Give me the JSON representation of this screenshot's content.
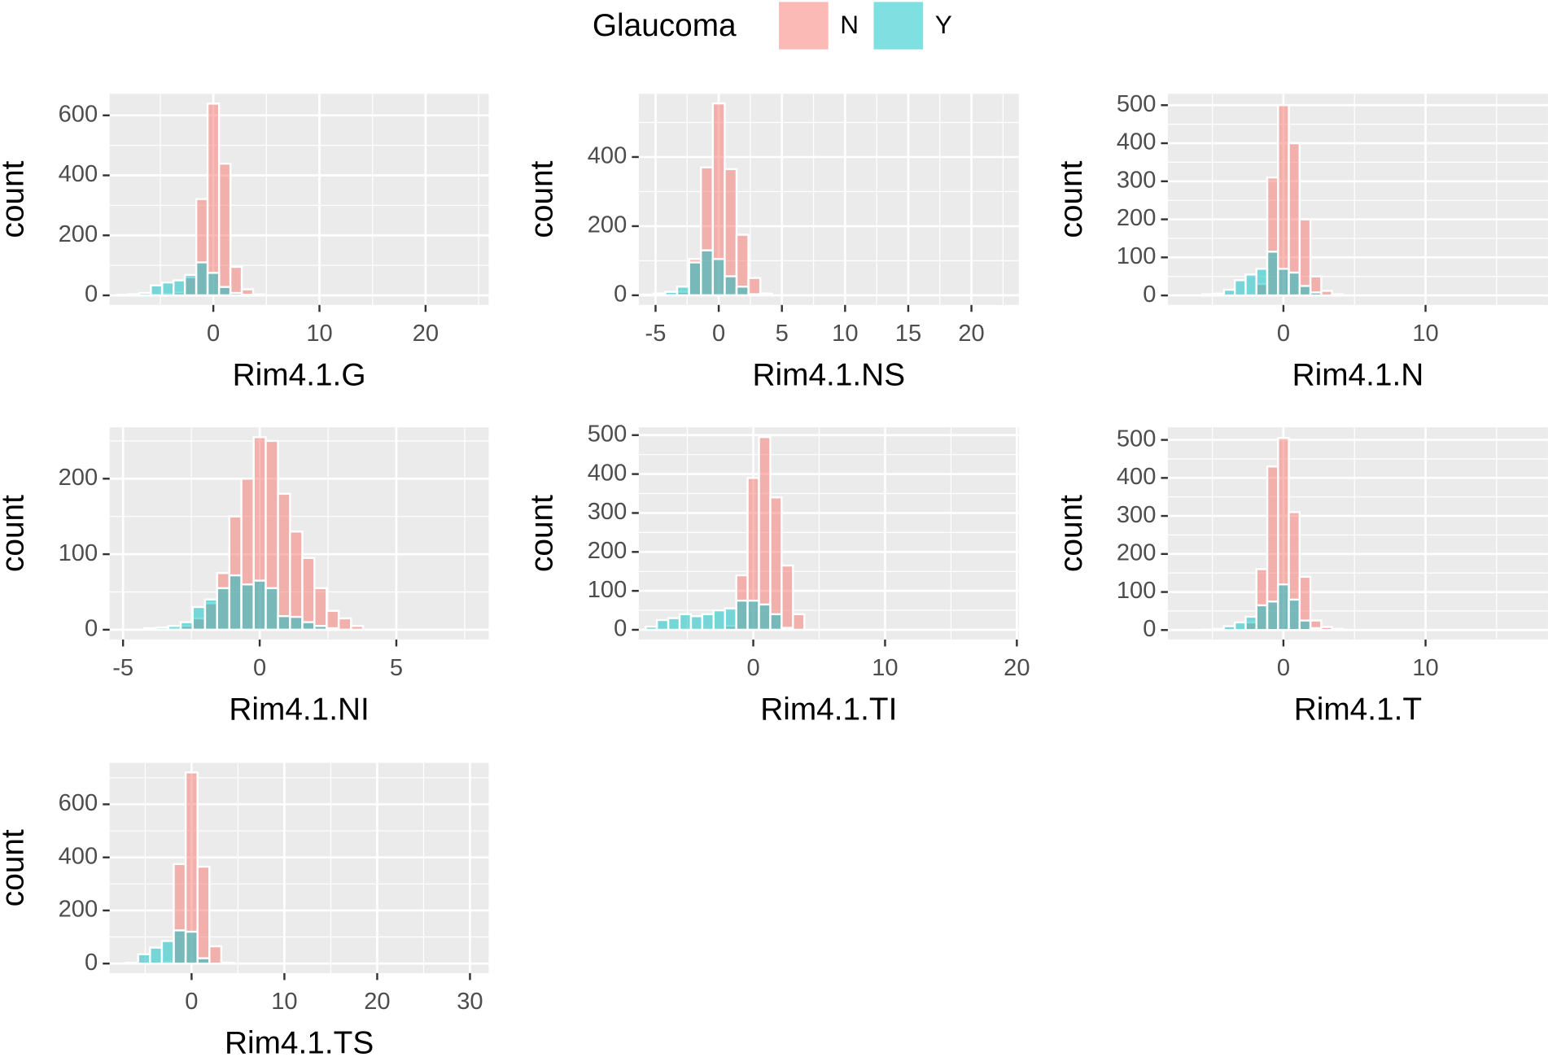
{
  "legend_title": "Glaucoma",
  "chart_data": [
    {
      "type": "histogram",
      "x_label": "Rim4.1.G",
      "y_label": "count",
      "alpha": 0.5,
      "grid": true,
      "bins": [
        -9.1,
        -8.03,
        -6.96,
        -5.89,
        -4.82,
        -3.75,
        -2.68,
        -1.61,
        -0.54,
        0.54,
        1.61,
        2.68,
        3.75,
        4.82
      ],
      "series": [
        {
          "name": "N",
          "color": "#F8766D",
          "values": [
            0,
            0,
            2,
            3,
            5,
            10,
            60,
            321,
            639,
            439,
            95,
            20,
            3
          ]
        },
        {
          "name": "Y",
          "color": "#00BFC4",
          "values": [
            2,
            4,
            8,
            33,
            43,
            50,
            68,
            110,
            75,
            28,
            8,
            2,
            0
          ]
        }
      ],
      "xlim": [
        -9.77,
        25.95
      ],
      "xticks": [
        0,
        10,
        20
      ],
      "ylim": [
        -32,
        672
      ],
      "yticks": [
        0,
        200,
        400,
        600
      ]
    },
    {
      "type": "histogram",
      "x_label": "Rim4.1.NS",
      "y_label": "count",
      "alpha": 0.5,
      "grid": true,
      "bins": [
        -6.11,
        -5.17,
        -4.23,
        -3.29,
        -2.35,
        -1.41,
        -0.47,
        0.47,
        1.41,
        2.35,
        3.29,
        4.23
      ],
      "series": [
        {
          "name": "N",
          "color": "#F8766D",
          "values": [
            0,
            0,
            2,
            10,
            105,
            370,
            555,
            365,
            175,
            50,
            5
          ]
        },
        {
          "name": "Y",
          "color": "#00BFC4",
          "values": [
            2,
            5,
            10,
            25,
            95,
            130,
            105,
            55,
            25,
            3,
            0
          ]
        }
      ],
      "xlim": [
        -6.33,
        23.75
      ],
      "xticks": [
        -5,
        0,
        5,
        10,
        15,
        20
      ],
      "ylim": [
        -28,
        583
      ],
      "yticks": [
        0,
        200,
        400
      ]
    },
    {
      "type": "histogram",
      "x_label": "Rim4.1.N",
      "y_label": "count",
      "alpha": 0.5,
      "grid": true,
      "bins": [
        -5.7,
        -4.94,
        -4.18,
        -3.42,
        -2.66,
        -1.9,
        -1.14,
        -0.38,
        0.38,
        1.14,
        1.9,
        2.66,
        3.42,
        4.18
      ],
      "series": [
        {
          "name": "N",
          "color": "#F8766D",
          "values": [
            0,
            0,
            0,
            0,
            0,
            30,
            310,
            500,
            400,
            200,
            50,
            12,
            3
          ]
        },
        {
          "name": "Y",
          "color": "#00BFC4",
          "values": [
            3,
            5,
            15,
            40,
            55,
            70,
            115,
            70,
            60,
            25,
            8,
            0,
            0
          ]
        }
      ],
      "xlim": [
        -8.13,
        18.61
      ],
      "xticks": [
        0,
        10
      ],
      "ylim": [
        -25,
        530
      ],
      "yticks": [
        0,
        100,
        200,
        300,
        400,
        500
      ]
    },
    {
      "type": "histogram",
      "x_label": "Rim4.1.NI",
      "y_label": "count",
      "alpha": 0.5,
      "grid": true,
      "bins": [
        -4.23,
        -3.78,
        -3.34,
        -2.89,
        -2.45,
        -2.0,
        -1.56,
        -1.11,
        -0.67,
        -0.22,
        0.22,
        0.67,
        1.11,
        1.56,
        2.0,
        2.45,
        2.89,
        3.34,
        3.78
      ],
      "series": [
        {
          "name": "N",
          "color": "#F8766D",
          "values": [
            0,
            1,
            2,
            5,
            15,
            35,
            75,
            150,
            200,
            255,
            250,
            180,
            130,
            95,
            55,
            25,
            15,
            5
          ]
        },
        {
          "name": "Y",
          "color": "#00BFC4",
          "values": [
            2,
            3,
            5,
            10,
            30,
            40,
            55,
            72,
            60,
            65,
            55,
            18,
            17,
            10,
            5,
            2,
            0,
            0
          ]
        }
      ],
      "xlim": [
        -5.49,
        8.38
      ],
      "xticks": [
        -5,
        0,
        5
      ],
      "ylim": [
        -13,
        268
      ],
      "yticks": [
        0,
        100,
        200
      ]
    },
    {
      "type": "histogram",
      "x_label": "Rim4.1.TI",
      "y_label": "count",
      "alpha": 0.5,
      "grid": true,
      "bins": [
        -8.17,
        -7.31,
        -6.45,
        -5.59,
        -4.73,
        -3.87,
        -3.01,
        -2.15,
        -1.29,
        -0.43,
        0.43,
        1.29,
        2.15,
        3.01,
        3.87
      ],
      "series": [
        {
          "name": "N",
          "color": "#F8766D",
          "values": [
            0,
            0,
            0,
            0,
            0,
            0,
            0,
            10,
            140,
            390,
            495,
            340,
            165,
            40,
            5
          ]
        },
        {
          "name": "Y",
          "color": "#00BFC4",
          "values": [
            8,
            25,
            30,
            40,
            35,
            40,
            50,
            55,
            75,
            75,
            65,
            40,
            5,
            0
          ]
        }
      ],
      "xlim": [
        -8.69,
        20.15
      ],
      "xticks": [
        0,
        10,
        20
      ],
      "ylim": [
        -25,
        520
      ],
      "yticks": [
        0,
        100,
        200,
        300,
        400,
        500
      ]
    },
    {
      "type": "histogram",
      "x_label": "Rim4.1.T",
      "y_label": "count",
      "alpha": 0.5,
      "grid": true,
      "bins": [
        -5.7,
        -4.94,
        -4.18,
        -3.42,
        -2.66,
        -1.9,
        -1.14,
        -0.38,
        0.38,
        1.14,
        1.9,
        2.66,
        3.42,
        4.18
      ],
      "series": [
        {
          "name": "N",
          "color": "#F8766D",
          "values": [
            0,
            0,
            0,
            0,
            20,
            160,
            430,
            505,
            310,
            140,
            25,
            8,
            3
          ]
        },
        {
          "name": "Y",
          "color": "#00BFC4",
          "values": [
            1,
            3,
            10,
            20,
            35,
            65,
            75,
            120,
            80,
            25,
            5,
            0,
            0
          ]
        }
      ],
      "xlim": [
        -8.13,
        18.61
      ],
      "xticks": [
        0,
        10
      ],
      "ylim": [
        -25,
        533
      ],
      "yticks": [
        0,
        100,
        200,
        300,
        400,
        500
      ]
    },
    {
      "type": "histogram",
      "x_label": "Rim4.1.TS",
      "y_label": "count",
      "alpha": 0.5,
      "grid": true,
      "bins": [
        -7.04,
        -5.76,
        -4.48,
        -3.2,
        -1.92,
        -0.64,
        0.64,
        1.92,
        3.2,
        4.48
      ],
      "series": [
        {
          "name": "N",
          "color": "#F8766D",
          "values": [
            0,
            0,
            0,
            5,
            375,
            720,
            365,
            65,
            3
          ]
        },
        {
          "name": "Y",
          "color": "#00BFC4",
          "values": [
            3,
            35,
            60,
            85,
            125,
            120,
            20,
            0,
            0
          ]
        }
      ],
      "xlim": [
        -8.83,
        32.02
      ],
      "xticks": [
        0,
        10,
        20,
        30
      ],
      "ylim": [
        -36,
        756
      ],
      "yticks": [
        0,
        200,
        400,
        600
      ]
    }
  ]
}
